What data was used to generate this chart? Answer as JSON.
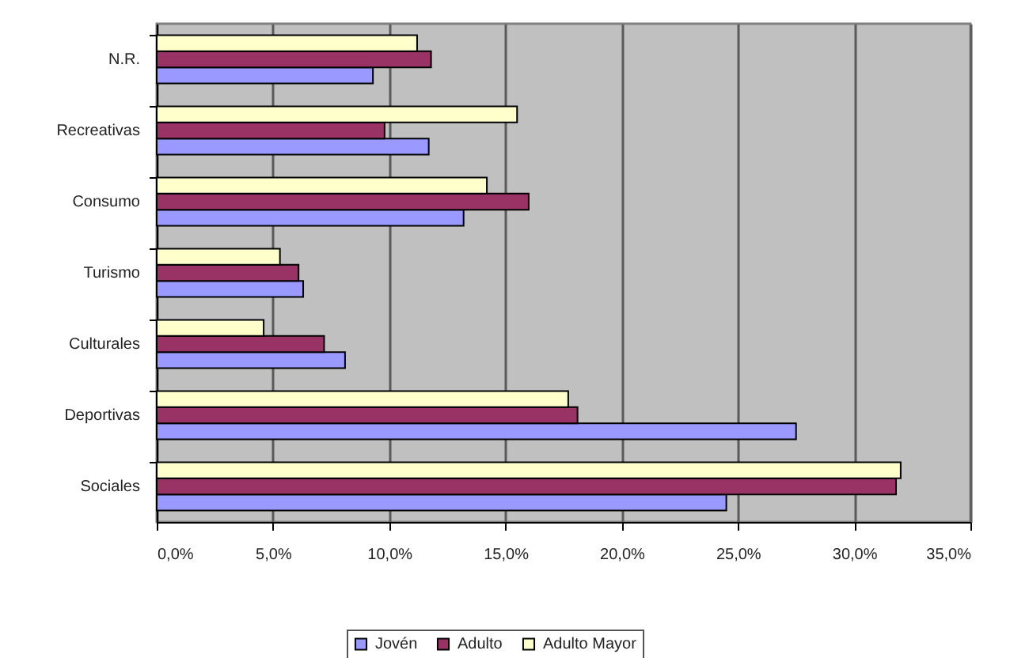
{
  "chart_data": {
    "type": "bar",
    "orientation": "horizontal",
    "categories": [
      "N.R.",
      "Recreativas",
      "Consumo",
      "Turismo",
      "Culturales",
      "Deportivas",
      "Sociales"
    ],
    "series": [
      {
        "name": "Jovén",
        "color": "#9999ff",
        "values": [
          9.3,
          11.7,
          13.2,
          6.3,
          8.1,
          27.5,
          24.5
        ]
      },
      {
        "name": "Adulto",
        "color": "#993366",
        "values": [
          11.8,
          9.8,
          16.0,
          6.1,
          7.2,
          18.1,
          31.8
        ]
      },
      {
        "name": "Adulto Mayor",
        "color": "#ffffcc",
        "values": [
          11.2,
          15.5,
          14.2,
          5.3,
          4.6,
          17.7,
          32.0
        ]
      }
    ],
    "xlim": [
      0,
      35
    ],
    "xticks": [
      {
        "value": 0,
        "label": "0,0%"
      },
      {
        "value": 5,
        "label": "5,0%"
      },
      {
        "value": 10,
        "label": "10,0%"
      },
      {
        "value": 15,
        "label": "15,0%"
      },
      {
        "value": 20,
        "label": "20,0%"
      },
      {
        "value": 25,
        "label": "25,0%"
      },
      {
        "value": 30,
        "label": "30,0%"
      },
      {
        "value": 35,
        "label": "35,0%"
      }
    ],
    "grid": "x",
    "legend": "bottom"
  }
}
